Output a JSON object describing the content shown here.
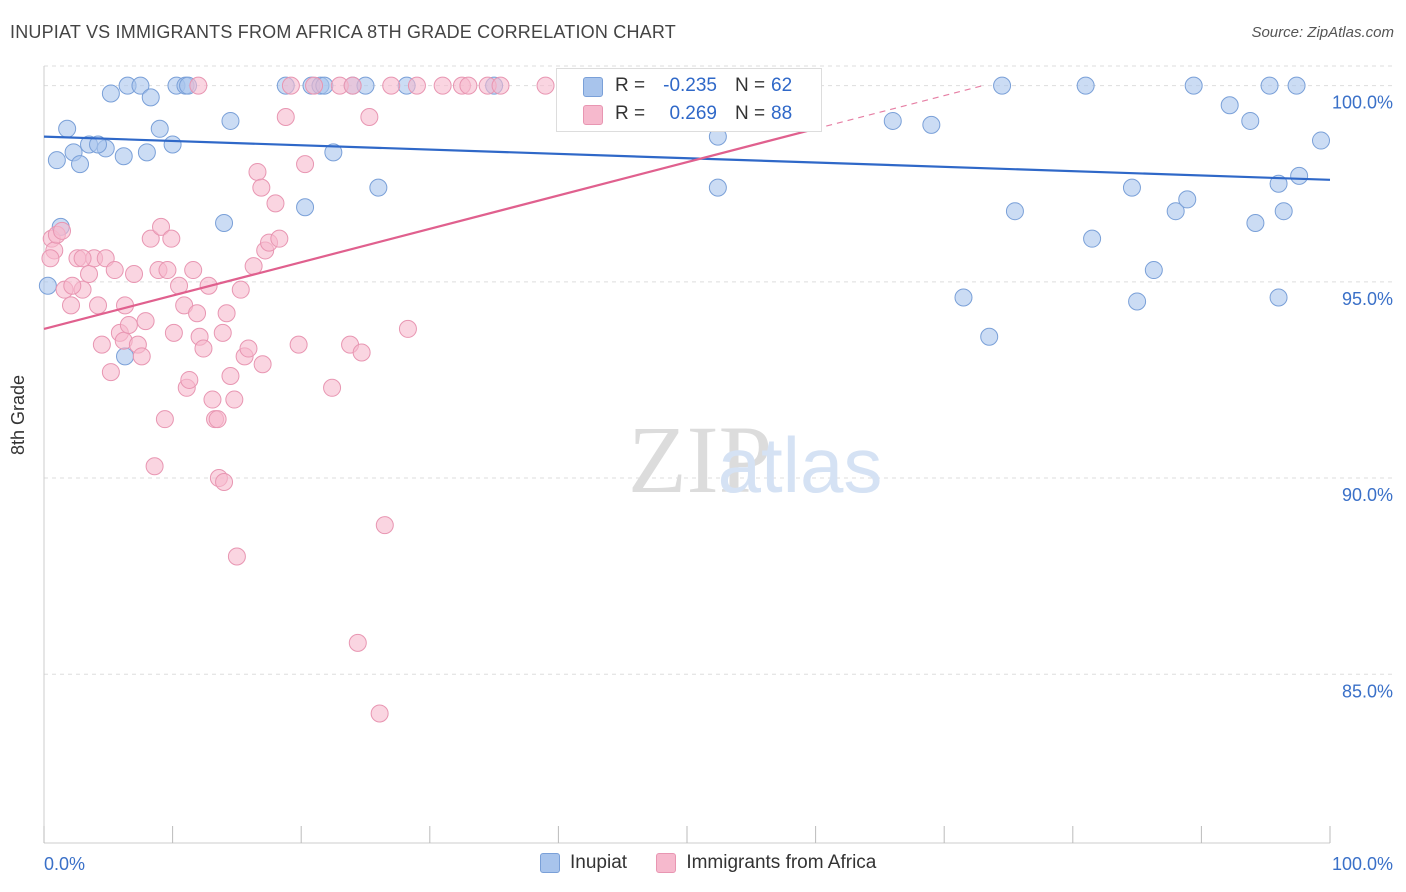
{
  "title": "INUPIAT VS IMMIGRANTS FROM AFRICA 8TH GRADE CORRELATION CHART",
  "source": "Source: ZipAtlas.com",
  "watermark": {
    "zip": "ZIP",
    "atlas": "atlas"
  },
  "colors": {
    "blue": "#2f68c8",
    "blue_fill": "#a8c4ec",
    "pink": "#e0608e",
    "pink_fill": "#f6b9cd",
    "grid": "#dddddd",
    "axis_text": "#3a70c8"
  },
  "stats": {
    "series1": {
      "r_label": "R =",
      "r_value": "-0.235",
      "n_label": "N =",
      "n_value": "62"
    },
    "series2": {
      "r_label": "R =",
      "r_value": "0.269",
      "n_label": "N =",
      "n_value": "88"
    }
  },
  "chart_data": {
    "type": "scatter",
    "title": "INUPIAT VS IMMIGRANTS FROM AFRICA 8TH GRADE CORRELATION CHART",
    "xlabel": "",
    "ylabel": "8th Grade",
    "xlim": [
      0,
      100
    ],
    "ylim": [
      80.7,
      100.5
    ],
    "x_tick_labels": [
      "0.0%",
      "100.0%"
    ],
    "y_ticks": [
      100,
      95,
      90,
      85
    ],
    "y_tick_labels": [
      "100.0%",
      "95.0%",
      "90.0%",
      "85.0%"
    ],
    "grid": true,
    "legend_position": "bottom",
    "series": [
      {
        "name": "Inupiat",
        "color": "#2f68c8",
        "trend": {
          "x": [
            0,
            100
          ],
          "y": [
            98.7,
            97.6
          ]
        },
        "points": [
          [
            1.8,
            98.9
          ],
          [
            2.3,
            98.3
          ],
          [
            2.8,
            98.0
          ],
          [
            3.5,
            98.5
          ],
          [
            1.0,
            98.1
          ],
          [
            4.8,
            98.4
          ],
          [
            4.2,
            98.5
          ],
          [
            6.2,
            98.2
          ],
          [
            8.0,
            98.3
          ],
          [
            5.2,
            99.8
          ],
          [
            6.5,
            100.0
          ],
          [
            7.5,
            100.0
          ],
          [
            8.3,
            99.7
          ],
          [
            9.0,
            98.9
          ],
          [
            10.0,
            98.5
          ],
          [
            10.3,
            100.0
          ],
          [
            11.0,
            100.0
          ],
          [
            11.2,
            100.0
          ],
          [
            14.5,
            99.1
          ],
          [
            14.0,
            96.5
          ],
          [
            18.8,
            100.0
          ],
          [
            20.3,
            96.9
          ],
          [
            20.8,
            100.0
          ],
          [
            21.5,
            100.0
          ],
          [
            21.8,
            100.0
          ],
          [
            22.5,
            98.3
          ],
          [
            24.0,
            100.0
          ],
          [
            25.0,
            100.0
          ],
          [
            26.0,
            97.4
          ],
          [
            28.2,
            100.0
          ],
          [
            35.0,
            100.0
          ],
          [
            1.3,
            96.4
          ],
          [
            0.3,
            94.9
          ],
          [
            6.3,
            93.1
          ],
          [
            52.4,
            97.4
          ],
          [
            52.4,
            98.7
          ],
          [
            58.7,
            100.0
          ],
          [
            59.0,
            99.1
          ],
          [
            66.0,
            99.1
          ],
          [
            69.0,
            99.0
          ],
          [
            74.5,
            100.0
          ],
          [
            75.5,
            96.8
          ],
          [
            81.0,
            100.0
          ],
          [
            81.5,
            96.1
          ],
          [
            84.6,
            97.4
          ],
          [
            86.3,
            95.3
          ],
          [
            85.0,
            94.5
          ],
          [
            88.0,
            96.8
          ],
          [
            88.9,
            97.1
          ],
          [
            89.4,
            100.0
          ],
          [
            92.2,
            99.5
          ],
          [
            93.8,
            99.1
          ],
          [
            94.2,
            96.5
          ],
          [
            95.3,
            100.0
          ],
          [
            96.0,
            97.5
          ],
          [
            96.4,
            96.8
          ],
          [
            96.0,
            94.6
          ],
          [
            97.6,
            97.7
          ],
          [
            99.3,
            98.6
          ],
          [
            71.5,
            94.6
          ],
          [
            73.5,
            93.6
          ],
          [
            97.4,
            100.0
          ]
        ]
      },
      {
        "name": "Immigrants from Africa",
        "color": "#e0608e",
        "trend": {
          "x": [
            0,
            60
          ],
          "y": [
            93.8,
            98.9
          ]
        },
        "trend_dashed": {
          "x": [
            60,
            73
          ],
          "y": [
            98.9,
            100.0
          ]
        },
        "points": [
          [
            0.6,
            96.1
          ],
          [
            0.8,
            95.8
          ],
          [
            1.0,
            96.2
          ],
          [
            1.4,
            96.3
          ],
          [
            0.5,
            95.6
          ],
          [
            1.6,
            94.8
          ],
          [
            2.1,
            94.4
          ],
          [
            2.6,
            95.6
          ],
          [
            3.0,
            94.8
          ],
          [
            3.5,
            95.2
          ],
          [
            3.9,
            95.6
          ],
          [
            4.2,
            94.4
          ],
          [
            4.5,
            93.4
          ],
          [
            4.8,
            95.6
          ],
          [
            5.2,
            92.7
          ],
          [
            5.5,
            95.3
          ],
          [
            5.9,
            93.7
          ],
          [
            6.2,
            93.5
          ],
          [
            6.3,
            94.4
          ],
          [
            6.6,
            93.9
          ],
          [
            7.0,
            95.2
          ],
          [
            7.3,
            93.4
          ],
          [
            7.6,
            93.1
          ],
          [
            7.9,
            94.0
          ],
          [
            8.3,
            96.1
          ],
          [
            8.6,
            90.3
          ],
          [
            8.9,
            95.3
          ],
          [
            9.1,
            96.4
          ],
          [
            9.4,
            91.5
          ],
          [
            9.6,
            95.3
          ],
          [
            9.9,
            96.1
          ],
          [
            10.1,
            93.7
          ],
          [
            10.5,
            94.9
          ],
          [
            10.9,
            94.4
          ],
          [
            11.1,
            92.3
          ],
          [
            11.3,
            92.5
          ],
          [
            11.6,
            95.3
          ],
          [
            11.9,
            94.2
          ],
          [
            12.1,
            93.6
          ],
          [
            12.4,
            93.3
          ],
          [
            12.8,
            94.9
          ],
          [
            13.1,
            92.0
          ],
          [
            13.3,
            91.5
          ],
          [
            13.6,
            90.0
          ],
          [
            13.9,
            93.7
          ],
          [
            14.2,
            94.2
          ],
          [
            14.5,
            92.6
          ],
          [
            14.8,
            92.0
          ],
          [
            15.0,
            88.0
          ],
          [
            15.3,
            94.8
          ],
          [
            15.6,
            93.1
          ],
          [
            15.9,
            93.3
          ],
          [
            16.3,
            95.4
          ],
          [
            16.6,
            97.8
          ],
          [
            16.9,
            97.4
          ],
          [
            17.2,
            95.8
          ],
          [
            17.5,
            96.0
          ],
          [
            18.0,
            97.0
          ],
          [
            18.3,
            96.1
          ],
          [
            18.8,
            99.2
          ],
          [
            19.2,
            100.0
          ],
          [
            19.8,
            93.4
          ],
          [
            20.3,
            98.0
          ],
          [
            21.0,
            100.0
          ],
          [
            22.4,
            92.3
          ],
          [
            23.0,
            100.0
          ],
          [
            23.8,
            93.4
          ],
          [
            24.0,
            100.0
          ],
          [
            24.4,
            85.8
          ],
          [
            24.7,
            93.2
          ],
          [
            25.3,
            99.2
          ],
          [
            26.1,
            84.0
          ],
          [
            26.5,
            88.8
          ],
          [
            27.0,
            100.0
          ],
          [
            28.3,
            93.8
          ],
          [
            29.0,
            100.0
          ],
          [
            31.0,
            100.0
          ],
          [
            32.5,
            100.0
          ],
          [
            33.0,
            100.0
          ],
          [
            34.5,
            100.0
          ],
          [
            35.5,
            100.0
          ],
          [
            39.0,
            100.0
          ],
          [
            13.5,
            91.5
          ],
          [
            12.0,
            100.0
          ],
          [
            14.0,
            89.9
          ],
          [
            3.0,
            95.6
          ],
          [
            2.2,
            94.9
          ],
          [
            17.0,
            92.9
          ]
        ]
      }
    ]
  },
  "legend": {
    "series1": "Inupiat",
    "series2": "Immigrants from Africa"
  }
}
